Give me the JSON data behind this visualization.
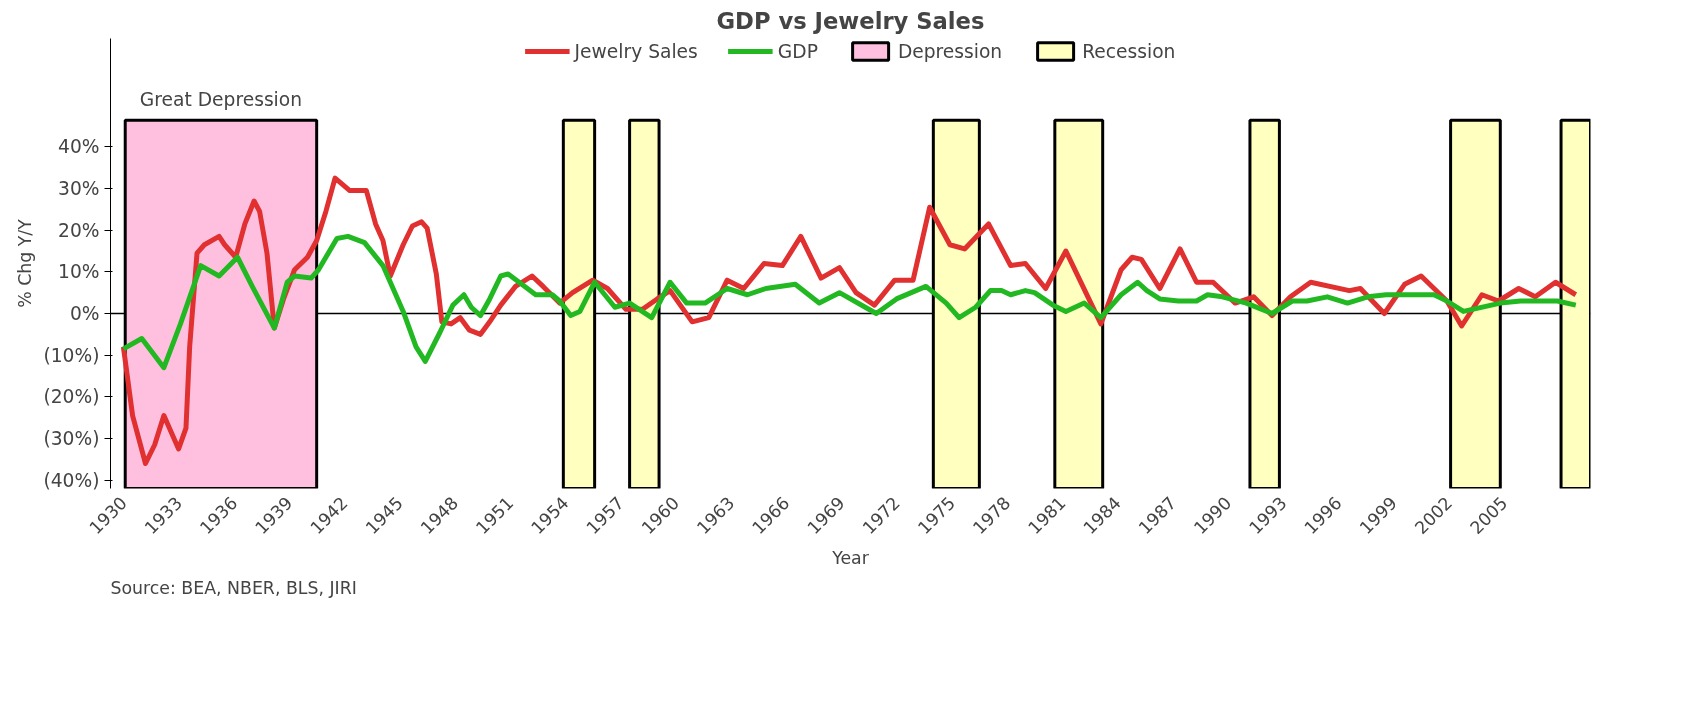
{
  "chart_data": {
    "type": "line",
    "title": "GDP vs Jewelry Sales",
    "xlabel": "Year",
    "ylabel": "% Chg Y/Y",
    "annotations": [
      "Great Depression",
      "Source:  BEA, NBER, BLS, JIRI"
    ],
    "xlim": [
      1929.3,
      2009.7
    ],
    "ylim": [
      -42,
      66
    ],
    "xticks": [
      1930,
      1933,
      1936,
      1939,
      1942,
      1945,
      1948,
      1951,
      1954,
      1957,
      1960,
      1963,
      1966,
      1969,
      1972,
      1975,
      1978,
      1981,
      1984,
      1987,
      1990,
      1993,
      1996,
      1999,
      2002,
      2005
    ],
    "yticks": [
      {
        "value": -40,
        "label": "(40%)"
      },
      {
        "value": -30,
        "label": "(30%)"
      },
      {
        "value": -20,
        "label": "(20%)"
      },
      {
        "value": -10,
        "label": "(10%)"
      },
      {
        "value": 0,
        "label": "0%"
      },
      {
        "value": 10,
        "label": "10%"
      },
      {
        "value": 20,
        "label": "20%"
      },
      {
        "value": 30,
        "label": "30%"
      },
      {
        "value": 40,
        "label": "40%"
      }
    ],
    "grid": false,
    "legend": "top",
    "line_style": "solid",
    "marker": "none",
    "ref_lines": [
      {
        "axis": "y",
        "value": 0,
        "color": "#000000"
      }
    ],
    "bands": [
      {
        "axis": "x",
        "from": 1930.1,
        "to": 1940.5,
        "label": "Depression",
        "color": "#ffc0e0"
      },
      {
        "axis": "x",
        "from": 1953.9,
        "to": 1955.6,
        "label": "Recession",
        "color": "#ffffc0"
      },
      {
        "axis": "x",
        "from": 1957.5,
        "to": 1959.1,
        "color": "#ffffc0"
      },
      {
        "axis": "x",
        "from": 1974.0,
        "to": 1976.5,
        "color": "#ffffc0"
      },
      {
        "axis": "x",
        "from": 1980.6,
        "to": 1983.2,
        "color": "#ffffc0"
      },
      {
        "axis": "x",
        "from": 1991.2,
        "to": 1992.8,
        "color": "#ffffc0"
      },
      {
        "axis": "x",
        "from": 2002.1,
        "to": 2004.8,
        "color": "#ffffc0"
      },
      {
        "axis": "x",
        "from": 2008.1,
        "to": 2009.7,
        "color": "#ffffc0"
      }
    ],
    "series": [
      {
        "name": "Jewelry Sales",
        "color": "#e03030",
        "x": [
          1930.0,
          1930.5,
          1931.2,
          1931.7,
          1932.2,
          1933.0,
          1933.4,
          1933.6,
          1934.0,
          1934.4,
          1935.2,
          1935.5,
          1936.1,
          1936.6,
          1937.1,
          1937.4,
          1937.8,
          1938.2,
          1938.7,
          1939.3,
          1940.0,
          1940.5,
          1941.0,
          1941.5,
          1942.3,
          1943.2,
          1943.7,
          1944.1,
          1944.5,
          1945.2,
          1945.7,
          1946.2,
          1946.5,
          1947.0,
          1947.3,
          1947.8,
          1948.3,
          1948.8,
          1949.4,
          1949.9,
          1950.5,
          1951.3,
          1952.2,
          1952.8,
          1953.7,
          1954.4,
          1955.5,
          1956.3,
          1957.3,
          1958.2,
          1959.0,
          1959.7,
          1960.9,
          1961.8,
          1962.8,
          1963.7,
          1964.8,
          1965.8,
          1966.8,
          1967.9,
          1968.9,
          1969.8,
          1970.8,
          1971.9,
          1972.9,
          1973.8,
          1974.9,
          1975.7,
          1977.0,
          1978.2,
          1979.0,
          1980.1,
          1981.2,
          1983.1,
          1984.2,
          1984.8,
          1985.3,
          1986.3,
          1987.4,
          1988.3,
          1989.2,
          1990.4,
          1991.4,
          1992.4,
          1993.4,
          1994.5,
          1996.6,
          1997.2,
          1998.5,
          1999.6,
          2000.5,
          2001.9,
          2002.7,
          2003.8,
          2004.7,
          2005.8,
          2006.7,
          2007.8,
          2008.9
        ],
        "values": [
          -8,
          -24.5,
          -36,
          -31.5,
          -24.5,
          -32.5,
          -27.5,
          -8,
          14.5,
          16.5,
          18.5,
          16.5,
          13.5,
          21.5,
          27,
          24.5,
          14.5,
          -3.5,
          3.5,
          10.5,
          13.5,
          17.5,
          24.5,
          32.5,
          29.5,
          29.5,
          21.5,
          17.5,
          9,
          16.5,
          21,
          22,
          20.5,
          9.5,
          -2,
          -2.5,
          -1,
          -4,
          -5,
          -2,
          2,
          6.5,
          9,
          6.5,
          2.5,
          5,
          8,
          6,
          1,
          1,
          3.5,
          5.5,
          -2,
          -1,
          8,
          6,
          12,
          11.5,
          18.5,
          8.5,
          11,
          5,
          2,
          8,
          8,
          25.5,
          16.5,
          15.5,
          21.5,
          11.5,
          12,
          6,
          15,
          -2.5,
          10.5,
          13.5,
          13,
          6,
          15.5,
          7.5,
          7.5,
          2.5,
          4,
          -0.5,
          4,
          7.5,
          5.5,
          6,
          0,
          7,
          9,
          3,
          -3,
          4.5,
          3,
          6,
          4,
          7.5,
          4.5
        ]
      },
      {
        "name": "GDP",
        "color": "#22b822",
        "x": [
          1930.0,
          1931.0,
          1932.2,
          1933.1,
          1934.2,
          1935.2,
          1936.2,
          1937.0,
          1938.2,
          1938.9,
          1939.3,
          1940.2,
          1940.6,
          1941.6,
          1942.2,
          1943.1,
          1944.1,
          1945.2,
          1945.9,
          1946.4,
          1947.2,
          1947.9,
          1948.5,
          1948.9,
          1949.4,
          1949.9,
          1950.5,
          1950.9,
          1952.4,
          1953.3,
          1953.7,
          1954.3,
          1954.8,
          1955.6,
          1956.7,
          1957.5,
          1958.7,
          1959.7,
          1960.6,
          1961.6,
          1962.8,
          1963.9,
          1964.9,
          1966.5,
          1967.8,
          1968.9,
          1970.9,
          1972.0,
          1973.6,
          1974.7,
          1975.4,
          1976.3,
          1977.1,
          1977.7,
          1978.2,
          1979.0,
          1979.5,
          1980.5,
          1981.2,
          1982.2,
          1983.1,
          1984.2,
          1985.1,
          1985.6,
          1986.3,
          1987.3,
          1988.3,
          1988.9,
          1989.7,
          1991.0,
          1992.4,
          1993.5,
          1994.3,
          1995.4,
          1996.5,
          1997.6,
          1998.6,
          2001.2,
          2001.9,
          2002.8,
          2004.8,
          2005.9,
          2006.8,
          2007.9,
          2008.9
        ],
        "values": [
          -8.5,
          -6,
          -13,
          -2.5,
          11.5,
          9,
          13.5,
          6.5,
          -3.5,
          7.5,
          9,
          8.5,
          10.5,
          18,
          18.5,
          17,
          11.5,
          0.5,
          -8,
          -11.5,
          -4.5,
          2,
          4.5,
          1.5,
          -0.5,
          3.5,
          9,
          9.5,
          4.5,
          4.5,
          3,
          -0.5,
          0.5,
          7.5,
          1.5,
          2.5,
          -1,
          7.5,
          2.5,
          2.5,
          6,
          4.5,
          6,
          7,
          2.5,
          5,
          0,
          3.5,
          6.5,
          2.5,
          -1,
          1.5,
          5.5,
          5.5,
          4.5,
          5.5,
          5,
          2,
          0.5,
          2.5,
          -1,
          4.5,
          7.5,
          5.5,
          3.5,
          3,
          3,
          4.5,
          4,
          2.5,
          0,
          3,
          3,
          4,
          2.5,
          4,
          4.5,
          4.5,
          3,
          0.5,
          2.5,
          3,
          3,
          3,
          2
        ]
      }
    ]
  }
}
